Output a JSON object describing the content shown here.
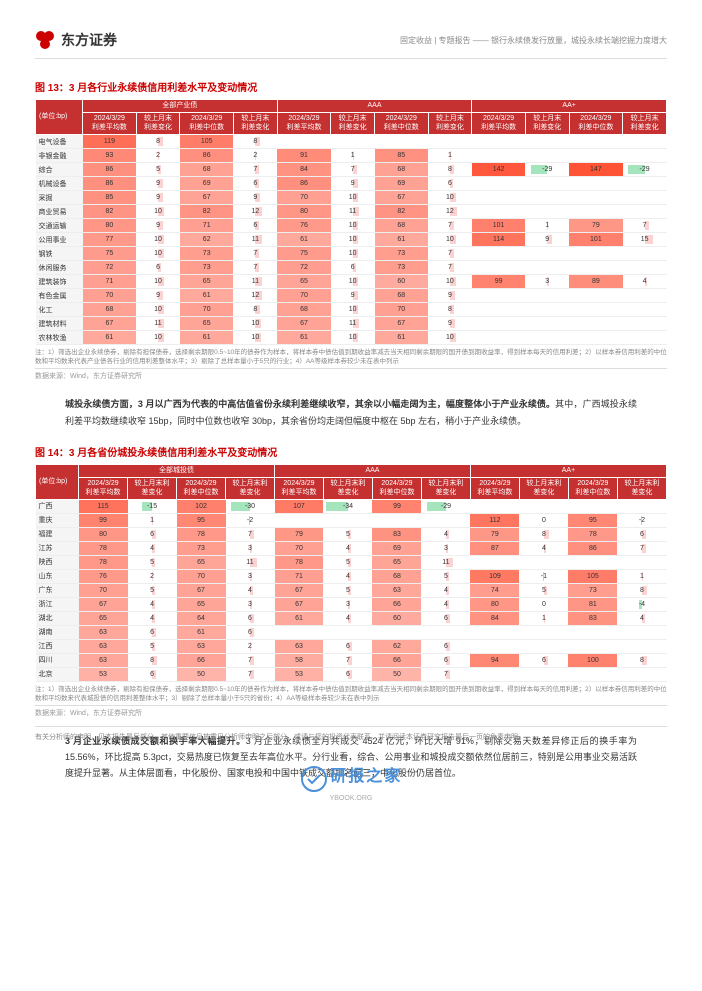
{
  "header": {
    "company": "东方证券",
    "right": "固定收益 | 专题报告 —— 银行永续债发行放量，城投永续长端挖掘力度增大"
  },
  "fig13": {
    "title": "图 13：3 月各行业永续债信用利差水平及变动情况",
    "unit_label": "(单位:bp)",
    "group_headers": [
      "全部产业债",
      "AAA",
      "AA+"
    ],
    "col_headers": [
      "2024/3/29\n利差平均数",
      "较上月末\n利差变化",
      "2024/3/29\n利差中位数",
      "较上月末\n利差变化"
    ],
    "rows": [
      {
        "label": "电气设备",
        "a": [
          119,
          8,
          105,
          8
        ],
        "b": [
          "",
          "",
          "",
          ""
        ],
        "c": [
          "",
          "",
          "",
          ""
        ]
      },
      {
        "label": "非银金融",
        "a": [
          93,
          2,
          86,
          2
        ],
        "b": [
          91,
          1,
          85,
          1
        ],
        "c": [
          "",
          "",
          "",
          ""
        ]
      },
      {
        "label": "综合",
        "a": [
          86,
          5,
          68,
          7
        ],
        "b": [
          84,
          7,
          68,
          8
        ],
        "c": [
          142,
          -29,
          147,
          -29
        ]
      },
      {
        "label": "机械设备",
        "a": [
          86,
          9,
          69,
          6
        ],
        "b": [
          86,
          9,
          69,
          6
        ],
        "c": [
          "",
          "",
          "",
          ""
        ]
      },
      {
        "label": "采掘",
        "a": [
          85,
          9,
          67,
          9
        ],
        "b": [
          70,
          10,
          67,
          10
        ],
        "c": [
          "",
          "",
          "",
          ""
        ]
      },
      {
        "label": "商业贸易",
        "a": [
          82,
          10,
          82,
          12
        ],
        "b": [
          80,
          11,
          82,
          12
        ],
        "c": [
          "",
          "",
          "",
          ""
        ]
      },
      {
        "label": "交通运输",
        "a": [
          80,
          9,
          71,
          6
        ],
        "b": [
          76,
          10,
          68,
          7
        ],
        "c": [
          101,
          1,
          79,
          7
        ]
      },
      {
        "label": "公用事业",
        "a": [
          77,
          10,
          62,
          11
        ],
        "b": [
          61,
          10,
          61,
          10
        ],
        "c": [
          114,
          9,
          101,
          15
        ]
      },
      {
        "label": "钢铁",
        "a": [
          75,
          10,
          73,
          7
        ],
        "b": [
          75,
          10,
          73,
          7
        ],
        "c": [
          "",
          "",
          "",
          ""
        ]
      },
      {
        "label": "休闲服务",
        "a": [
          72,
          6,
          73,
          7
        ],
        "b": [
          72,
          6,
          73,
          7
        ],
        "c": [
          "",
          "",
          "",
          ""
        ]
      },
      {
        "label": "建筑装饰",
        "a": [
          71,
          10,
          65,
          11
        ],
        "b": [
          65,
          10,
          60,
          10
        ],
        "c": [
          99,
          3,
          89,
          4
        ]
      },
      {
        "label": "有色金属",
        "a": [
          70,
          9,
          61,
          12
        ],
        "b": [
          70,
          9,
          68,
          9
        ],
        "c": [
          "",
          "",
          "",
          ""
        ]
      },
      {
        "label": "化工",
        "a": [
          68,
          10,
          70,
          8
        ],
        "b": [
          68,
          10,
          70,
          8
        ],
        "c": [
          "",
          "",
          "",
          ""
        ]
      },
      {
        "label": "建筑材料",
        "a": [
          67,
          11,
          65,
          10
        ],
        "b": [
          67,
          11,
          67,
          9
        ],
        "c": [
          "",
          "",
          "",
          ""
        ]
      },
      {
        "label": "农林牧渔",
        "a": [
          61,
          10,
          61,
          10
        ],
        "b": [
          61,
          10,
          61,
          10
        ],
        "c": [
          "",
          "",
          "",
          ""
        ]
      }
    ],
    "note": "注：1）筛选出企业永续债券，剔除有担保债券，选择剩余期限0.5~10年的债券作为样本，将样本券中债估值到期收益率减去当天相同剩余期限的国开债到期收益率，得到样本每天的信用利差；2）以样本券信用利差的中位数和平均数来代表产业债各行业的信用利差整体水平；3）剔除了总样本量小于5只的行业；4）AA等级样本券较少未在表中列示",
    "source": "数据来源：Wind，东方证券研究所"
  },
  "body1": "城投永续债方面，3 月以广西为代表的中高估值省份永续利差继续收窄，其余以小幅走阔为主，幅度整体小于产业永续债。其中，广西城投永续利差平均数继续收窄 15bp，同时中位数也收窄 30bp，其余省份均走阔但幅度中枢在 5bp 左右，稍小于产业永续债。",
  "fig14": {
    "title": "图 14：3 月各省份城投永续债信用利差水平及变动情况",
    "unit_label": "(单位:bp)",
    "group_headers": [
      "全部城投债",
      "AAA",
      "AA+"
    ],
    "col_headers": [
      "2024/3/29\n利差平均数",
      "较上月末利\n差变化",
      "2024/3/29\n利差中位数",
      "较上月末利\n差变化"
    ],
    "rows": [
      {
        "label": "广西",
        "a": [
          115,
          -15,
          102,
          -30
        ],
        "b": [
          107,
          -34,
          99,
          -29
        ],
        "c": [
          "",
          "",
          "",
          ""
        ]
      },
      {
        "label": "重庆",
        "a": [
          99,
          1,
          95,
          -2
        ],
        "b": [
          "",
          "",
          "",
          ""
        ],
        "c": [
          112,
          0,
          95,
          -2
        ]
      },
      {
        "label": "福建",
        "a": [
          80,
          6,
          78,
          7
        ],
        "b": [
          79,
          5,
          83,
          4
        ],
        "c": [
          79,
          8,
          78,
          6
        ]
      },
      {
        "label": "江苏",
        "a": [
          78,
          4,
          73,
          3
        ],
        "b": [
          70,
          4,
          69,
          3
        ],
        "c": [
          87,
          4,
          86,
          7
        ]
      },
      {
        "label": "陕西",
        "a": [
          78,
          5,
          65,
          11
        ],
        "b": [
          78,
          5,
          65,
          11
        ],
        "c": [
          "",
          "",
          "",
          ""
        ]
      },
      {
        "label": "山东",
        "a": [
          76,
          2,
          70,
          3
        ],
        "b": [
          71,
          4,
          68,
          5
        ],
        "c": [
          109,
          -1,
          105,
          1
        ]
      },
      {
        "label": "广东",
        "a": [
          70,
          5,
          67,
          4
        ],
        "b": [
          67,
          5,
          63,
          4
        ],
        "c": [
          74,
          5,
          73,
          8
        ]
      },
      {
        "label": "浙江",
        "a": [
          67,
          4,
          65,
          3
        ],
        "b": [
          67,
          3,
          66,
          4
        ],
        "c": [
          80,
          0,
          81,
          -4
        ]
      },
      {
        "label": "湖北",
        "a": [
          65,
          4,
          64,
          6
        ],
        "b": [
          61,
          4,
          60,
          6
        ],
        "c": [
          84,
          1,
          83,
          4
        ]
      },
      {
        "label": "湖南",
        "a": [
          63,
          6,
          61,
          6
        ],
        "b": [
          "",
          "",
          "",
          ""
        ],
        "c": [
          "",
          "",
          "",
          ""
        ]
      },
      {
        "label": "江西",
        "a": [
          63,
          5,
          63,
          2
        ],
        "b": [
          63,
          6,
          62,
          6
        ],
        "c": [
          "",
          "",
          "",
          ""
        ]
      },
      {
        "label": "四川",
        "a": [
          63,
          8,
          66,
          7
        ],
        "b": [
          58,
          7,
          66,
          6
        ],
        "c": [
          94,
          6,
          100,
          8
        ]
      },
      {
        "label": "北京",
        "a": [
          53,
          6,
          50,
          7
        ],
        "b": [
          53,
          6,
          50,
          7
        ],
        "c": [
          "",
          "",
          "",
          ""
        ]
      }
    ],
    "note": "注：1）筛选出企业永续债券，剔除有担保债券，选择剩余期限0.5~10年的债券作为样本，将样本券中债估值到期收益率减去当天相同剩余期限的国开债到期收益率，得到样本每天的信用利差；2）以样本券信用利差的中位数和平均数来代表城投债的信用利差整体水平；3）剔除了总样本量小于5只的省份；4）AA等级样本券较少未在表中列示",
    "source": "数据来源：Wind，东方证券研究所"
  },
  "body2": "3 月企业永续债成交额和换手率大幅提升。3 月企业永续债全月共成交 4524 亿元，环比大增 91%，剔除交易天数差异修正后的换手率为 15.56%，环比提高 5.3pct，交易热度已恢复至去年高位水平。分行业看，综合、公用事业和城投成交额依然位居前三，特别是公用事业交易活跃度提升显著。从主体层面看，中化股份、国家电投和中国中铁成交额排名前三，中化股份仍居首位。",
  "footer_text": "有关分析师的申明，见本报告最后部分。其他重要信息披露见分析师申明之后部分，或请与您的投资代表联系。并请阅读本证券研究报告最后一页的免责申明。",
  "watermark": {
    "name": "研报之家",
    "url": "YBOOK.ORG"
  },
  "colors": {
    "header_bg": "#c53030",
    "pos_bar": "#f8b4b4",
    "neg_bar": "#68d391",
    "avg_bg_light": "#fde8e8",
    "avg_bg_dark": "#f56565"
  },
  "scales": {
    "avg_max": 150,
    "chg_max": 35
  }
}
